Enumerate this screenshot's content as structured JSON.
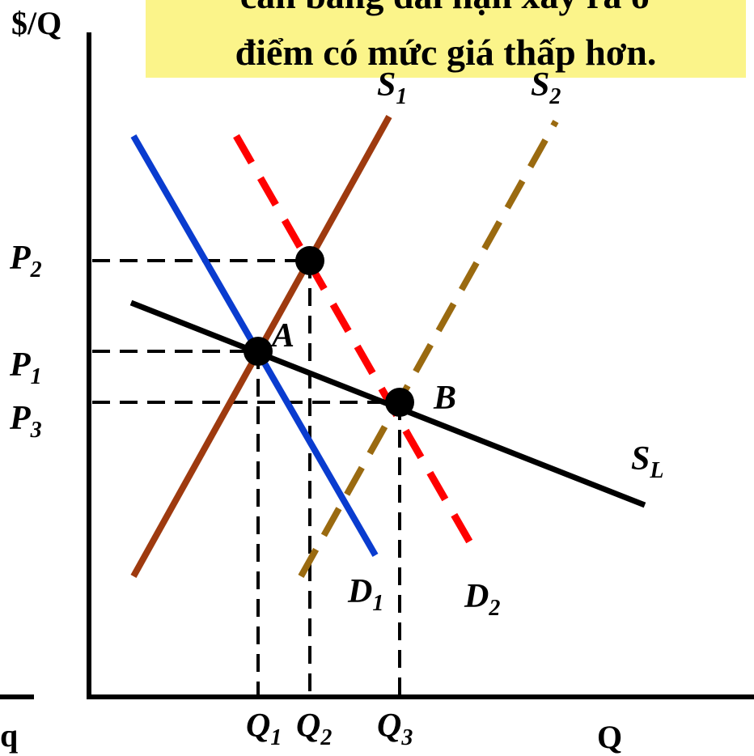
{
  "banner": {
    "line1": "cân bằng dài hạn xảy ra ở",
    "line2": "điểm có mức giá thấp hơn.",
    "background": "#fbf48a"
  },
  "axes": {
    "y_label": "$/Q",
    "x_label": "Q",
    "left_cut_label": "q"
  },
  "curves": {
    "S1": {
      "base": "S",
      "sub": "1",
      "color": "#9e3a0f"
    },
    "S2": {
      "base": "S",
      "sub": "2",
      "color": "#9a6a10"
    },
    "D1": {
      "base": "D",
      "sub": "1",
      "color": "#0a3ccf"
    },
    "D2": {
      "base": "D",
      "sub": "2",
      "color": "#ff0000"
    },
    "SL": {
      "base": "S",
      "sub": "L",
      "color": "#000000"
    }
  },
  "points": {
    "A": "A",
    "B": "B"
  },
  "price_labels": [
    {
      "base": "P",
      "sub": "2"
    },
    {
      "base": "P",
      "sub": "1"
    },
    {
      "base": "P",
      "sub": "3"
    }
  ],
  "quantity_labels": [
    {
      "base": "Q",
      "sub": "1"
    },
    {
      "base": "Q",
      "sub": "2"
    },
    {
      "base": "Q",
      "sub": "3"
    }
  ]
}
